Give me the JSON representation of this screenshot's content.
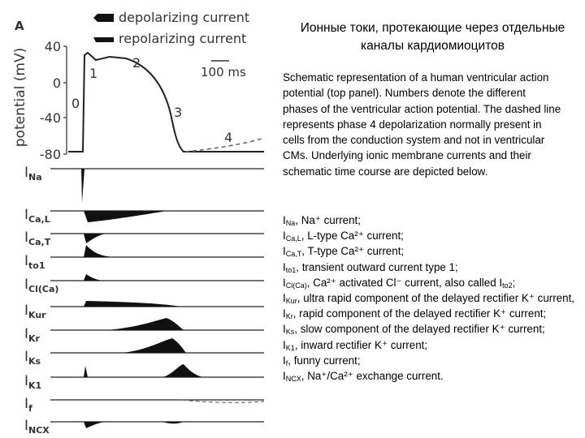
{
  "figure": {
    "panel_label": "A",
    "legend": [
      "depolarizing current",
      "repolarizing current"
    ],
    "y_axis_label": "potential (mV)",
    "y_tick_labels": [
      "40",
      "0",
      "-40",
      "-80"
    ],
    "scale_bar": "100 ms",
    "phase_labels": [
      "0",
      "1",
      "2",
      "3",
      "4"
    ],
    "currents": [
      [
        "I",
        {
          "sub": "Na"
        }
      ],
      [
        "I",
        {
          "sub": "Ca,L"
        }
      ],
      [
        "I",
        {
          "sub": "Ca,T"
        }
      ],
      [
        "I",
        {
          "sub": "to1"
        }
      ],
      [
        "I",
        {
          "sub": "Cl(Ca)"
        }
      ],
      [
        "I",
        {
          "sub": "Kur"
        }
      ],
      [
        "I",
        {
          "sub": "Kr"
        }
      ],
      [
        "I",
        {
          "sub": "Ks"
        }
      ],
      [
        "I",
        {
          "sub": "K1"
        }
      ],
      [
        "I",
        {
          "sub": "f"
        }
      ],
      [
        "I",
        {
          "sub": "NCX"
        }
      ]
    ]
  },
  "title": "Ионные токи, протекающие через отдельные каналы кардиомиоцитов",
  "description": "Schematic representation of a human ventricular action potential (top panel). Numbers denote the different phases of the ventricular action potential. The dashed line represents phase 4 depolarization normally present in cells from the conduction system and not in ventricular CMs. Underlying ionic membrane currents and their schematic time course are depicted below.",
  "definitions": [
    [
      "I",
      {
        "sub": "Na"
      },
      ", Na⁺ current;"
    ],
    [
      "I",
      {
        "sub": "Ca,L"
      },
      ", L-type Ca²⁺ current;"
    ],
    [
      "I",
      {
        "sub": "Ca,T"
      },
      ", T-type Ca²⁺ current;"
    ],
    [
      "I",
      {
        "sub": "to1"
      },
      ", transient outward current type 1;"
    ],
    [
      "I",
      {
        "sub": "Cl(Ca)"
      },
      ", Ca²⁺ activated Cl⁻ current, also called I",
      {
        "sub": "to2"
      },
      ";"
    ],
    [
      "I",
      {
        "sub": "Kur"
      },
      ", ultra rapid component of the delayed rectifier K⁺ current,"
    ],
    [
      "I",
      {
        "sub": "Kr"
      },
      ", rapid component of the delayed rectifier K⁺ current;"
    ],
    [
      "I",
      {
        "sub": "Ks"
      },
      ", slow component of the delayed rectifier K⁺ current;"
    ],
    [
      "I",
      {
        "sub": "K1"
      },
      ", inward rectifier K⁺ current;"
    ],
    [
      "I",
      {
        "sub": "f"
      },
      ", funny current;"
    ],
    [
      "I",
      {
        "sub": "NCX"
      },
      ", Na⁺/Ca²⁺ exchange current."
    ]
  ]
}
